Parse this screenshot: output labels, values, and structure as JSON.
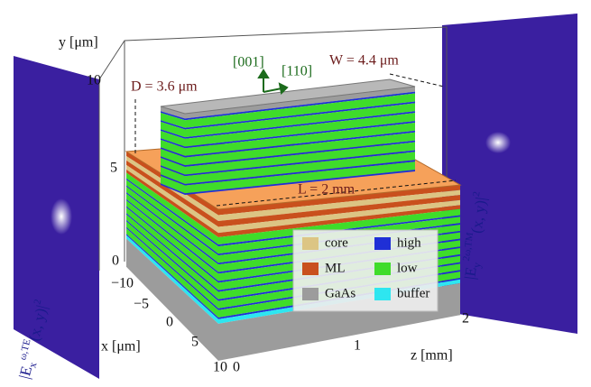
{
  "axes": {
    "y": {
      "label": "y [μm]",
      "ticks": [
        "10",
        "5",
        "0"
      ]
    },
    "x": {
      "label": "x [μm]",
      "ticks": [
        "−10",
        "−5",
        "0",
        "5",
        "10"
      ]
    },
    "z": {
      "label": "z [mm]",
      "ticks": [
        "0",
        "1",
        "2"
      ]
    }
  },
  "annotations": {
    "depth": "D = 3.6 μm",
    "width": "W = 4.4 μm",
    "length": "L = 2 mm",
    "dir_vertical": "[001]",
    "dir_horizontal": "[110]"
  },
  "legend": [
    {
      "label": "core",
      "color": "#dcc584"
    },
    {
      "label": "high",
      "color": "#1f2fd6"
    },
    {
      "label": "ML",
      "color": "#c9501d"
    },
    {
      "label": "low",
      "color": "#3fdc2a"
    },
    {
      "label": "GaAs",
      "color": "#9c9c9c"
    },
    {
      "label": "buffer",
      "color": "#2ee6f0"
    }
  ],
  "fields": {
    "left": {
      "base": "|E",
      "sub": "x",
      "sup": "ω,TE",
      "rest": "(x, y)|",
      "power": "2"
    },
    "right": {
      "base": "|E",
      "sub": "y",
      "sup": "2ω,TM",
      "rest": "(x, y)|",
      "power": "2"
    }
  }
}
